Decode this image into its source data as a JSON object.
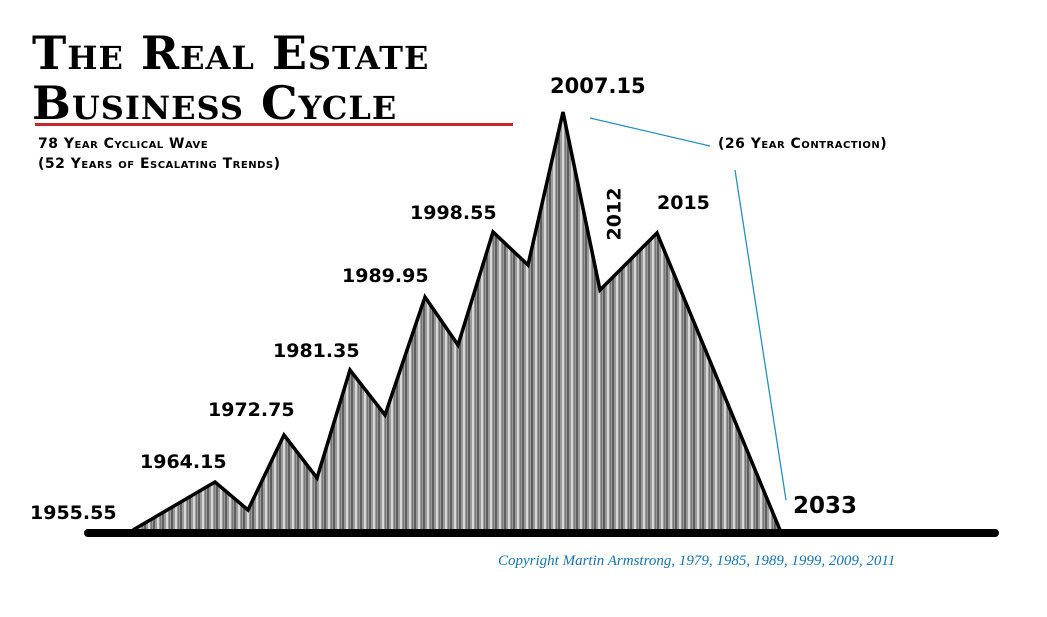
{
  "title_line1": "The Real Estate",
  "title_line2": "Business Cycle",
  "subtitle_line1": "78 Year Cyclical Wave",
  "subtitle_line2": "(52 Years of Escalating Trends)",
  "annotation": "(26 Year Contraction)",
  "copyright": "Copyright Martin Armstrong, 1979, 1985, 1989, 1999, 2009, 2011",
  "colors": {
    "accent_rule": "#c0282f",
    "annotation_line": "#2a8fb5",
    "copyright": "#1a73a8",
    "fill": "#8a8a8a"
  },
  "chart_data": {
    "type": "area",
    "style": "stylized wave with vertical-streak gray fill, no axes",
    "grid": false,
    "points": [
      {
        "label": "1955.55",
        "year": 1955.55,
        "kind": "start"
      },
      {
        "label": "1964.15",
        "year": 1964.15,
        "kind": "peak"
      },
      {
        "label": "1972.75",
        "year": 1972.75,
        "kind": "peak"
      },
      {
        "label": "1981.35",
        "year": 1981.35,
        "kind": "peak"
      },
      {
        "label": "1989.95",
        "year": 1989.95,
        "kind": "peak"
      },
      {
        "label": "1998.55",
        "year": 1998.55,
        "kind": "peak"
      },
      {
        "label": "2007.15",
        "year": 2007.15,
        "kind": "major peak"
      },
      {
        "label": "2012",
        "year": 2012,
        "kind": "trough"
      },
      {
        "label": "2015",
        "year": 2015,
        "kind": "peak"
      },
      {
        "label": "2033",
        "year": 2033,
        "kind": "end"
      }
    ]
  }
}
